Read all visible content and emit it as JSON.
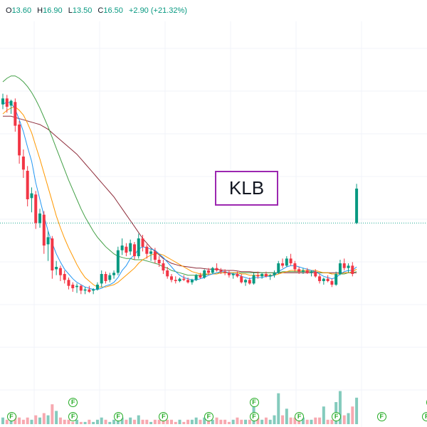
{
  "legend": {
    "open_key": "O",
    "open": "13.60",
    "high_key": "H",
    "high": "16.90",
    "low_key": "L",
    "low": "13.50",
    "close_key": "C",
    "close": "16.50",
    "change": "+2.90 (+21.32%)"
  },
  "ticker": "KLB",
  "chart_data": {
    "type": "candlestick",
    "ohlc": [
      [
        23.6,
        24.5,
        23.2,
        24.1
      ],
      [
        24.1,
        24.4,
        22.9,
        23.4
      ],
      [
        23.5,
        24.0,
        22.8,
        23.9
      ],
      [
        23.8,
        24.1,
        21.3,
        21.8
      ],
      [
        21.9,
        22.2,
        18.6,
        19.3
      ],
      [
        19.2,
        19.8,
        17.4,
        18.1
      ],
      [
        18.0,
        18.4,
        15.0,
        15.6
      ],
      [
        15.7,
        16.6,
        14.5,
        16.1
      ],
      [
        16.0,
        16.3,
        13.1,
        13.6
      ],
      [
        13.6,
        14.8,
        13.2,
        14.4
      ],
      [
        14.3,
        14.6,
        11.0,
        11.7
      ],
      [
        11.8,
        12.9,
        10.4,
        12.4
      ],
      [
        12.3,
        12.5,
        8.9,
        9.6
      ],
      [
        9.7,
        10.4,
        9.2,
        9.9
      ],
      [
        9.8,
        10.0,
        8.7,
        9.2
      ],
      [
        9.3,
        9.6,
        8.5,
        8.8
      ],
      [
        8.8,
        9.0,
        8.0,
        8.3
      ],
      [
        8.4,
        8.6,
        7.8,
        8.1
      ],
      [
        8.2,
        8.5,
        7.7,
        8.3
      ],
      [
        8.3,
        8.4,
        7.6,
        7.9
      ],
      [
        7.9,
        8.2,
        7.6,
        8.0
      ],
      [
        8.0,
        8.3,
        7.7,
        7.8
      ],
      [
        7.9,
        8.1,
        7.6,
        8.0
      ],
      [
        8.0,
        8.6,
        7.9,
        8.4
      ],
      [
        8.5,
        9.6,
        8.2,
        9.3
      ],
      [
        9.3,
        9.5,
        8.5,
        8.7
      ],
      [
        8.8,
        9.4,
        8.6,
        9.2
      ],
      [
        9.2,
        9.6,
        8.9,
        9.4
      ],
      [
        9.4,
        11.6,
        9.2,
        11.3
      ],
      [
        11.3,
        12.3,
        10.9,
        11.7
      ],
      [
        11.6,
        11.9,
        10.8,
        11.1
      ],
      [
        11.2,
        12.2,
        10.9,
        11.9
      ],
      [
        11.8,
        12.0,
        10.5,
        10.8
      ],
      [
        10.8,
        12.7,
        10.6,
        12.3
      ],
      [
        12.3,
        12.6,
        11.2,
        11.6
      ],
      [
        11.6,
        11.8,
        10.6,
        11.0
      ],
      [
        11.0,
        11.4,
        10.4,
        11.2
      ],
      [
        11.2,
        11.5,
        10.2,
        10.5
      ],
      [
        10.5,
        10.8,
        9.9,
        10.2
      ],
      [
        10.2,
        10.5,
        9.3,
        9.6
      ],
      [
        9.6,
        9.9,
        8.9,
        9.1
      ],
      [
        9.1,
        9.3,
        8.6,
        8.8
      ],
      [
        8.8,
        9.1,
        8.5,
        8.7
      ],
      [
        8.7,
        9.0,
        8.6,
        8.9
      ],
      [
        8.9,
        9.2,
        8.7,
        8.8
      ],
      [
        8.8,
        9.0,
        8.5,
        8.6
      ],
      [
        8.6,
        8.9,
        8.4,
        8.8
      ],
      [
        8.8,
        9.3,
        8.7,
        9.2
      ],
      [
        9.2,
        9.4,
        8.9,
        9.0
      ],
      [
        9.0,
        9.7,
        8.9,
        9.6
      ],
      [
        9.6,
        9.8,
        9.2,
        9.4
      ],
      [
        9.4,
        9.9,
        9.3,
        9.8
      ],
      [
        9.8,
        10.2,
        9.5,
        9.6
      ],
      [
        9.6,
        9.8,
        9.3,
        9.5
      ],
      [
        9.5,
        9.7,
        9.2,
        9.4
      ],
      [
        9.4,
        9.6,
        9.0,
        9.2
      ],
      [
        9.2,
        9.4,
        8.9,
        9.3
      ],
      [
        9.3,
        9.5,
        9.0,
        9.1
      ],
      [
        9.1,
        9.3,
        8.5,
        8.6
      ],
      [
        8.6,
        8.9,
        8.3,
        8.8
      ],
      [
        8.8,
        9.0,
        8.4,
        8.5
      ],
      [
        8.5,
        9.4,
        8.4,
        9.2
      ],
      [
        9.2,
        9.5,
        8.9,
        9.1
      ],
      [
        9.1,
        9.4,
        8.9,
        9.3
      ],
      [
        9.3,
        9.5,
        9.0,
        9.1
      ],
      [
        9.1,
        9.3,
        8.8,
        9.2
      ],
      [
        9.2,
        9.6,
        9.0,
        9.4
      ],
      [
        9.4,
        10.4,
        9.3,
        10.2
      ],
      [
        10.2,
        10.6,
        9.8,
        10.0
      ],
      [
        10.0,
        10.8,
        9.9,
        10.6
      ],
      [
        10.6,
        11.0,
        10.0,
        10.2
      ],
      [
        10.2,
        10.4,
        9.5,
        9.7
      ],
      [
        9.7,
        9.9,
        9.3,
        9.5
      ],
      [
        9.5,
        9.8,
        9.3,
        9.6
      ],
      [
        9.6,
        9.8,
        9.3,
        9.4
      ],
      [
        9.4,
        9.6,
        9.1,
        9.5
      ],
      [
        9.5,
        9.7,
        9.0,
        9.1
      ],
      [
        9.1,
        9.3,
        8.5,
        8.7
      ],
      [
        8.7,
        9.0,
        8.4,
        8.9
      ],
      [
        8.9,
        9.2,
        8.6,
        8.7
      ],
      [
        8.7,
        8.9,
        8.2,
        8.4
      ],
      [
        8.4,
        9.5,
        8.3,
        9.3
      ],
      [
        9.3,
        10.5,
        9.2,
        10.2
      ],
      [
        10.2,
        10.6,
        9.6,
        9.8
      ],
      [
        9.8,
        10.2,
        9.4,
        10.0
      ],
      [
        10.0,
        10.3,
        9.1,
        9.3
      ],
      [
        13.6,
        16.9,
        13.5,
        16.5
      ]
    ],
    "volume": [
      3,
      2,
      2,
      4,
      3,
      2,
      3,
      2,
      4,
      3,
      5,
      4,
      9,
      6,
      3,
      2,
      2,
      1,
      2,
      1,
      1,
      2,
      1,
      2,
      3,
      2,
      1,
      2,
      4,
      3,
      2,
      3,
      2,
      4,
      2,
      2,
      1,
      2,
      2,
      3,
      2,
      2,
      1,
      2,
      1,
      2,
      2,
      3,
      2,
      3,
      2,
      2,
      3,
      2,
      2,
      1,
      2,
      3,
      2,
      2,
      2,
      8,
      3,
      2,
      3,
      2,
      4,
      14,
      4,
      7,
      3,
      3,
      2,
      3,
      2,
      2,
      3,
      3,
      8,
      2,
      2,
      10,
      15,
      4,
      5,
      8,
      12
    ],
    "ma_blue": [
      23.6,
      23.8,
      23.7,
      23.2,
      22.3,
      21.3,
      20.0,
      18.8,
      17.0,
      15.6,
      14.2,
      12.9,
      11.9,
      11.0,
      10.3,
      9.7,
      9.3,
      8.9,
      8.6,
      8.4,
      8.2,
      8.1,
      8.0,
      8.0,
      8.1,
      8.3,
      8.4,
      8.6,
      9.0,
      9.6,
      10.0,
      10.6,
      10.9,
      11.4,
      11.6,
      11.5,
      11.4,
      11.3,
      11.0,
      10.7,
      10.3,
      9.9,
      9.5,
      9.2,
      9.0,
      8.9,
      8.8,
      8.8,
      8.9,
      9.0,
      9.2,
      9.3,
      9.4,
      9.5,
      9.5,
      9.4,
      9.3,
      9.3,
      9.1,
      9.0,
      8.9,
      9.0,
      9.0,
      9.0,
      9.1,
      9.1,
      9.2,
      9.5,
      9.7,
      9.9,
      10.0,
      10.0,
      9.9,
      9.8,
      9.7,
      9.6,
      9.5,
      9.3,
      9.1,
      9.0,
      8.9,
      9.0,
      9.3,
      9.5,
      9.6,
      9.6,
      9.9
    ],
    "ma_orange": [
      22.8,
      23.1,
      23.3,
      23.4,
      23.1,
      22.7,
      22.0,
      21.2,
      20.1,
      19.0,
      17.8,
      16.6,
      15.4,
      14.2,
      13.2,
      12.3,
      11.5,
      10.8,
      10.1,
      9.5,
      9.0,
      8.7,
      8.4,
      8.2,
      8.2,
      8.2,
      8.3,
      8.4,
      8.6,
      8.9,
      9.2,
      9.5,
      9.8,
      10.2,
      10.5,
      10.7,
      10.9,
      11.0,
      11.0,
      10.9,
      10.7,
      10.5,
      10.3,
      10.1,
      9.9,
      9.7,
      9.5,
      9.4,
      9.3,
      9.3,
      9.3,
      9.3,
      9.3,
      9.4,
      9.4,
      9.4,
      9.4,
      9.4,
      9.3,
      9.3,
      9.2,
      9.2,
      9.2,
      9.2,
      9.2,
      9.2,
      9.2,
      9.3,
      9.4,
      9.5,
      9.6,
      9.6,
      9.6,
      9.6,
      9.6,
      9.6,
      9.6,
      9.5,
      9.4,
      9.4,
      9.3,
      9.3,
      9.3,
      9.4,
      9.4,
      9.5,
      9.7
    ],
    "ma_green": [
      25.5,
      25.8,
      26.0,
      26.0,
      25.8,
      25.5,
      25.1,
      24.6,
      24.0,
      23.3,
      22.5,
      21.7,
      20.8,
      19.9,
      19.0,
      18.1,
      17.2,
      16.4,
      15.6,
      14.8,
      14.1,
      13.5,
      12.9,
      12.4,
      12.0,
      11.6,
      11.3,
      11.0,
      10.8,
      10.7,
      10.6,
      10.6,
      10.5,
      10.5,
      10.5,
      10.4,
      10.3,
      10.2,
      10.1,
      9.9,
      9.8,
      9.6,
      9.5,
      9.4,
      9.3,
      9.2,
      9.2,
      9.2,
      9.2,
      9.2,
      9.3,
      9.3,
      9.4,
      9.4,
      9.4,
      9.4,
      9.4,
      9.4,
      9.4,
      9.4,
      9.4,
      9.4,
      9.4,
      9.4,
      9.4,
      9.4,
      9.4,
      9.4,
      9.5,
      9.5,
      9.5,
      9.5,
      9.5,
      9.5,
      9.5,
      9.5,
      9.5,
      9.4,
      9.4,
      9.4,
      9.3,
      9.3,
      9.3,
      9.3,
      9.4,
      9.4,
      9.5
    ],
    "ma_red": [
      22.6,
      22.6,
      22.6,
      22.5,
      22.4,
      22.3,
      22.2,
      22.1,
      22.0,
      21.9,
      21.7,
      21.5,
      21.2,
      20.9,
      20.6,
      20.3,
      20.0,
      19.7,
      19.4,
      19.0,
      18.6,
      18.2,
      17.8,
      17.4,
      17.0,
      16.6,
      16.2,
      15.8,
      15.3,
      14.8,
      14.3,
      13.8,
      13.3,
      12.8,
      12.3,
      11.9,
      11.5,
      11.2,
      10.9,
      10.6,
      10.4,
      10.2,
      10.1,
      10.0,
      9.95,
      9.9,
      9.85,
      9.8,
      9.8,
      9.75,
      9.7,
      9.7,
      9.7,
      9.65,
      9.6,
      9.6,
      9.6,
      9.55,
      9.5,
      9.5,
      9.5,
      9.45,
      9.45,
      9.4,
      9.4,
      9.4,
      9.4,
      9.4,
      9.4,
      9.4,
      9.4,
      9.4,
      9.4,
      9.4,
      9.4,
      9.4,
      9.4,
      9.4,
      9.4,
      9.4,
      9.4,
      9.4,
      9.4,
      9.4,
      9.4,
      9.4,
      9.4
    ],
    "price_line": 13.6,
    "event_markers": [
      {
        "label": "F",
        "index": 0
      },
      {
        "label": "F",
        "index": 15
      },
      {
        "label": "F",
        "index": 15,
        "tier": 2
      },
      {
        "label": "F",
        "index": 26
      },
      {
        "label": "F",
        "index": 37
      },
      {
        "label": "F",
        "index": 48
      },
      {
        "label": "F",
        "index": 59
      },
      {
        "label": "F",
        "index": 59,
        "tier": 2
      },
      {
        "label": "F",
        "index": 70
      },
      {
        "label": "F",
        "index": 79
      },
      {
        "label": "F",
        "index": 90
      },
      {
        "label": "F",
        "index": 101
      },
      {
        "label": "F",
        "index": 102,
        "tier": 2
      }
    ],
    "colors": {
      "up": "#089981",
      "down": "#f23645",
      "vol_up": "#84cbbd",
      "vol_down": "#f7a9b0",
      "ma_blue": "#2196f3",
      "ma_orange": "#ff9800",
      "ma_green": "#43a047",
      "ma_red": "#8e2c3a",
      "price_line": "#22ab94",
      "grid": "#f0f3fa"
    }
  }
}
